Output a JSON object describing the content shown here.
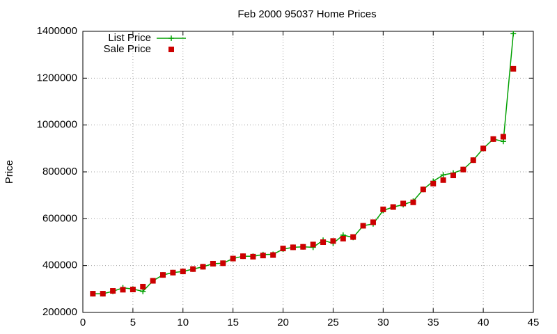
{
  "chart_data": {
    "type": "line",
    "title": "Feb 2000 95037 Home Prices",
    "y_label": "Price",
    "x": [
      1,
      2,
      3,
      4,
      5,
      6,
      7,
      8,
      9,
      10,
      11,
      12,
      13,
      14,
      15,
      16,
      17,
      18,
      19,
      20,
      21,
      22,
      23,
      24,
      25,
      26,
      27,
      28,
      29,
      30,
      31,
      32,
      33,
      34,
      35,
      36,
      37,
      38,
      39,
      40,
      41,
      42,
      43
    ],
    "series": [
      {
        "name": "List Price",
        "color": "#00a000",
        "marker": "plus",
        "line": true,
        "values": [
          280000,
          280000,
          290000,
          305000,
          300000,
          290000,
          335000,
          360000,
          370000,
          375000,
          385000,
          395000,
          408000,
          410000,
          430000,
          440000,
          440000,
          447000,
          448000,
          470000,
          478000,
          480000,
          478000,
          508000,
          495000,
          530000,
          520000,
          570000,
          578000,
          635000,
          650000,
          660000,
          675000,
          725000,
          760000,
          787000,
          795000,
          810000,
          850000,
          900000,
          940000,
          930000,
          1390000
        ]
      },
      {
        "name": "Sale Price",
        "color": "#cc0000",
        "marker": "square",
        "line": false,
        "values": [
          280000,
          280000,
          292000,
          297000,
          298000,
          310000,
          335000,
          360000,
          370000,
          375000,
          385000,
          395000,
          408000,
          410000,
          430000,
          440000,
          438000,
          443000,
          445000,
          473000,
          478000,
          480000,
          490000,
          500000,
          505000,
          515000,
          522000,
          570000,
          585000,
          640000,
          650000,
          665000,
          670000,
          725000,
          750000,
          765000,
          785000,
          810000,
          850000,
          900000,
          940000,
          950000,
          1240000
        ]
      }
    ],
    "xlim": [
      0,
      45
    ],
    "xticks": [
      0,
      5,
      10,
      15,
      20,
      25,
      30,
      35,
      40,
      45
    ],
    "ylim": [
      200000,
      1400000
    ],
    "yticks": [
      200000,
      400000,
      600000,
      800000,
      1000000,
      1200000,
      1400000
    ],
    "grid": true,
    "legend": "top-left"
  }
}
